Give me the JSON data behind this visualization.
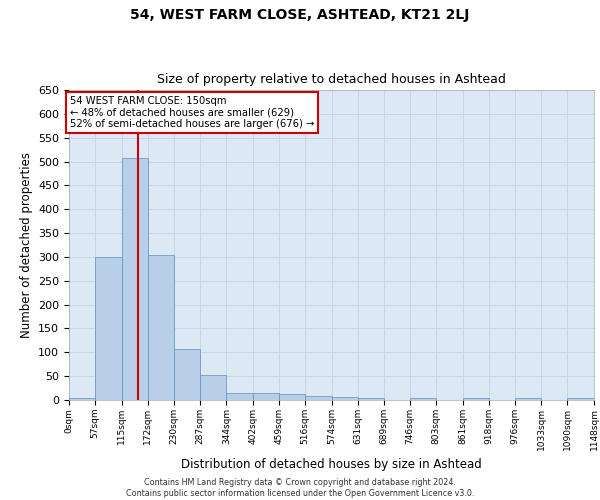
{
  "title": "54, WEST FARM CLOSE, ASHTEAD, KT21 2LJ",
  "subtitle": "Size of property relative to detached houses in Ashtead",
  "xlabel": "Distribution of detached houses by size in Ashtead",
  "ylabel": "Number of detached properties",
  "bin_edges": [
    0,
    57,
    115,
    172,
    230,
    287,
    344,
    402,
    459,
    516,
    574,
    631,
    689,
    746,
    803,
    861,
    918,
    976,
    1033,
    1090,
    1148
  ],
  "bar_heights": [
    5,
    300,
    507,
    303,
    107,
    53,
    14,
    15,
    13,
    9,
    6,
    4,
    0,
    5,
    0,
    5,
    0,
    5,
    0,
    5
  ],
  "bar_color": "#b8cfe8",
  "bar_edgecolor": "#6090c0",
  "grid_color": "#c8d4e8",
  "bg_color": "#dde8f5",
  "property_size": 150,
  "red_line_color": "#cc0000",
  "annotation_line1": "54 WEST FARM CLOSE: 150sqm",
  "annotation_line2": "← 48% of detached houses are smaller (629)",
  "annotation_line3": "52% of semi-detached houses are larger (676) →",
  "annotation_box_color": "#ffffff",
  "annotation_box_edgecolor": "#cc0000",
  "ylim": [
    0,
    650
  ],
  "yticks": [
    0,
    50,
    100,
    150,
    200,
    250,
    300,
    350,
    400,
    450,
    500,
    550,
    600,
    650
  ],
  "footer_line1": "Contains HM Land Registry data © Crown copyright and database right 2024.",
  "footer_line2": "Contains public sector information licensed under the Open Government Licence v3.0."
}
